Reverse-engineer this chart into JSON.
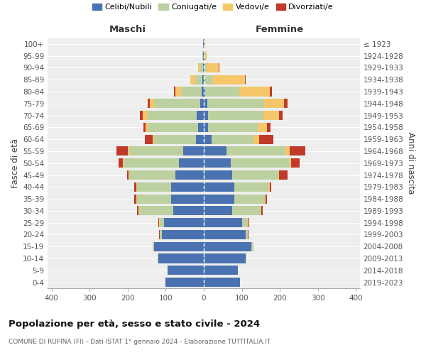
{
  "age_groups": [
    "0-4",
    "5-9",
    "10-14",
    "15-19",
    "20-24",
    "25-29",
    "30-34",
    "35-39",
    "40-44",
    "45-49",
    "50-54",
    "55-59",
    "60-64",
    "65-69",
    "70-74",
    "75-79",
    "80-84",
    "85-89",
    "90-94",
    "95-99",
    "100+"
  ],
  "birth_years": [
    "2019-2023",
    "2014-2018",
    "2009-2013",
    "2004-2008",
    "1999-2003",
    "1994-1998",
    "1989-1993",
    "1984-1988",
    "1979-1983",
    "1974-1978",
    "1969-1973",
    "1964-1968",
    "1959-1963",
    "1954-1958",
    "1949-1953",
    "1944-1948",
    "1939-1943",
    "1934-1938",
    "1929-1933",
    "1924-1928",
    "≤ 1923"
  ],
  "maschi": {
    "celibi": [
      100,
      95,
      120,
      130,
      110,
      105,
      80,
      85,
      85,
      75,
      65,
      55,
      20,
      15,
      18,
      10,
      5,
      3,
      2,
      1,
      1
    ],
    "coniugati": [
      0,
      0,
      2,
      5,
      5,
      10,
      90,
      90,
      90,
      120,
      145,
      140,
      110,
      130,
      130,
      120,
      55,
      20,
      8,
      2,
      1
    ],
    "vedovi": [
      0,
      0,
      0,
      0,
      1,
      2,
      2,
      2,
      2,
      2,
      3,
      5,
      5,
      8,
      12,
      12,
      15,
      12,
      5,
      1,
      0
    ],
    "divorziati": [
      0,
      0,
      0,
      0,
      1,
      2,
      3,
      5,
      5,
      5,
      10,
      30,
      20,
      5,
      8,
      5,
      3,
      0,
      0,
      0,
      0
    ]
  },
  "femmine": {
    "nubili": [
      95,
      90,
      110,
      125,
      110,
      100,
      75,
      80,
      80,
      75,
      70,
      60,
      20,
      12,
      12,
      10,
      4,
      2,
      2,
      1,
      1
    ],
    "coniugate": [
      0,
      0,
      2,
      5,
      5,
      15,
      75,
      80,
      90,
      120,
      155,
      155,
      110,
      130,
      145,
      148,
      90,
      22,
      5,
      2,
      1
    ],
    "vedove": [
      0,
      0,
      0,
      0,
      1,
      2,
      2,
      2,
      3,
      3,
      5,
      10,
      15,
      25,
      40,
      52,
      80,
      85,
      32,
      5,
      2
    ],
    "divorziate": [
      0,
      0,
      0,
      0,
      1,
      2,
      3,
      5,
      5,
      22,
      22,
      42,
      38,
      8,
      10,
      10,
      5,
      2,
      2,
      0,
      0
    ]
  },
  "colors": {
    "celibi": "#4a72b0",
    "coniugati": "#bdd09f",
    "vedovi": "#f5c76a",
    "divorziati": "#c0392b"
  },
  "title": "Popolazione per età, sesso e stato civile - 2024",
  "subtitle": "COMUNE DI RUFINA (FI) - Dati ISTAT 1° gennaio 2024 - Elaborazione TUTTITALIA.IT",
  "xlabel_left": "Maschi",
  "xlabel_right": "Femmine",
  "ylabel": "Fasce di età",
  "ylabel_right": "Anni di nascita",
  "xlim": 410,
  "background_color": "#ffffff",
  "plot_bg_color": "#eeeeee",
  "grid_color": "#ffffff",
  "legend_labels": [
    "Celibi/Nubili",
    "Coniugati/e",
    "Vedovi/e",
    "Divorziati/e"
  ]
}
